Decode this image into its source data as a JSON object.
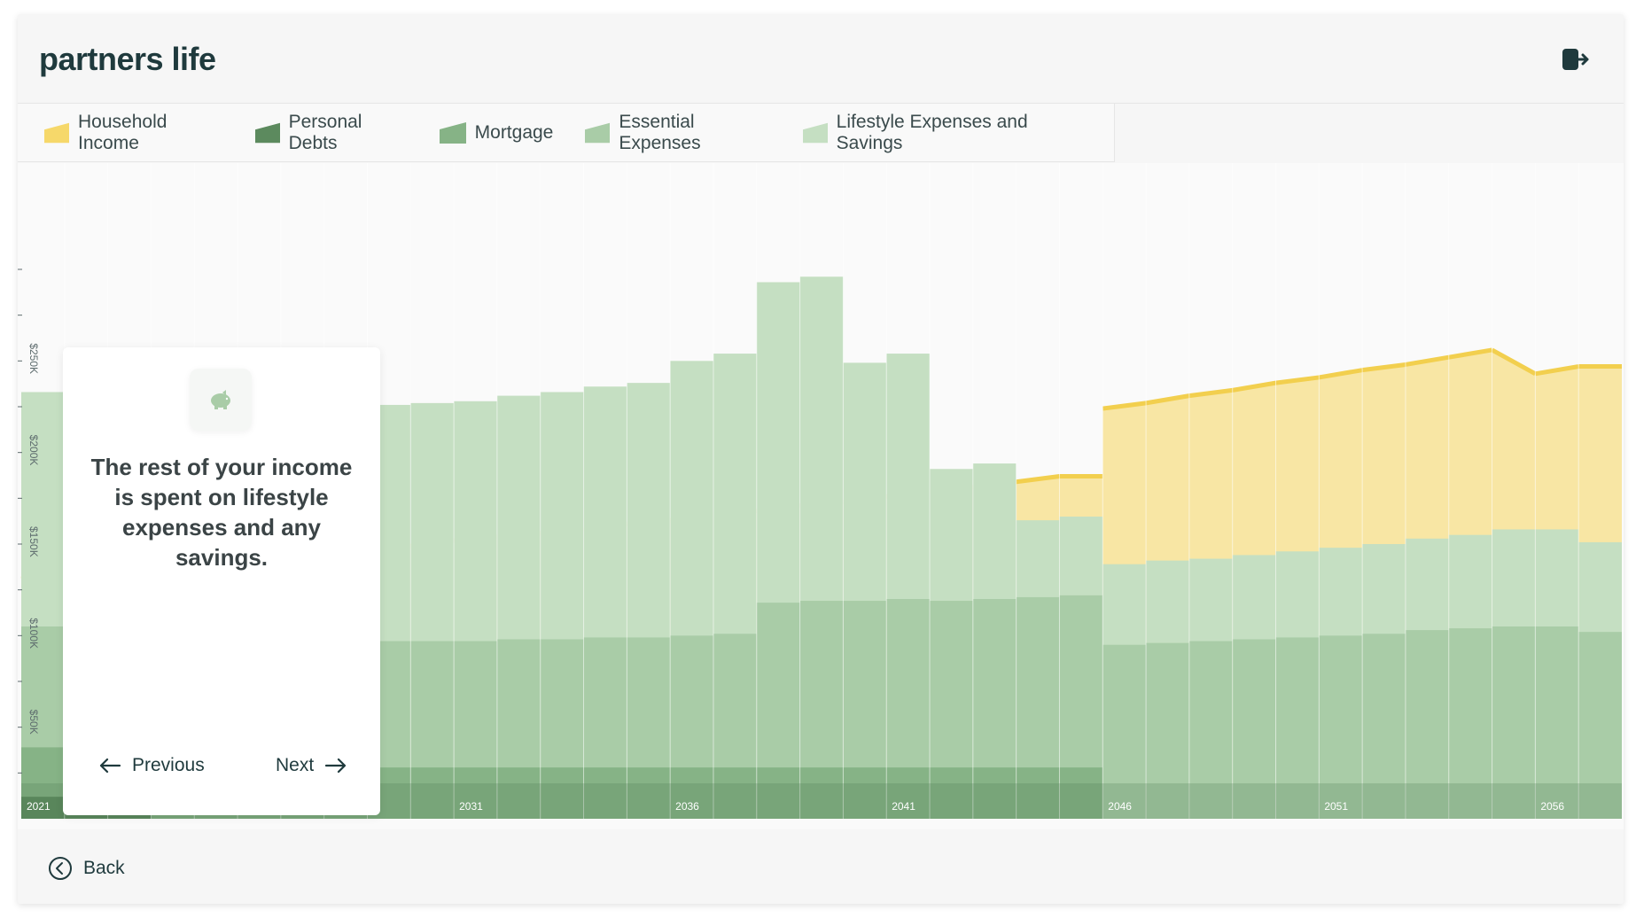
{
  "header": {
    "logo_text": "partners life",
    "logout_icon": "logout-icon"
  },
  "legend": [
    {
      "label": "Household Income",
      "color": "#f6d86a"
    },
    {
      "label": "Personal Debts",
      "color": "#5c8a5e"
    },
    {
      "label": "Mortgage",
      "color": "#86b386"
    },
    {
      "label": "Essential Expenses",
      "color": "#a9cca7"
    },
    {
      "label": "Lifestyle Expenses and Savings",
      "color": "#c5dfc2"
    }
  ],
  "card": {
    "icon": "piggy-bank-icon",
    "text": "The rest of your income is spent on lifestyle expenses and any savings.",
    "previous_label": "Previous",
    "next_label": "Next"
  },
  "footer": {
    "back_label": "Back"
  },
  "chart_data": {
    "type": "area",
    "x": [
      2021,
      2022,
      2023,
      2024,
      2025,
      2026,
      2027,
      2028,
      2029,
      2030,
      2031,
      2032,
      2033,
      2034,
      2035,
      2036,
      2037,
      2038,
      2039,
      2040,
      2041,
      2042,
      2043,
      2044,
      2045,
      2046,
      2047,
      2048,
      2049,
      2050,
      2051,
      2052,
      2053,
      2054,
      2055,
      2056,
      2057
    ],
    "x_tick_labels": [
      "2021",
      "2026",
      "2031",
      "2036",
      "2041",
      "2046",
      "2051",
      "2056"
    ],
    "y_tick_labels": [
      "$50K",
      "$100K",
      "$150K",
      "$200K",
      "$250K"
    ],
    "ylim": [
      0,
      300000
    ],
    "series": [
      {
        "name": "Household Income",
        "color": "#f6d86a",
        "values": [
          131000,
          133000,
          135000,
          137000,
          139000,
          141000,
          143000,
          145000,
          147000,
          149000,
          152000,
          154000,
          156000,
          158000,
          161000,
          163000,
          166000,
          168000,
          171000,
          173000,
          176000,
          179000,
          181000,
          184000,
          187000,
          224000,
          227000,
          231000,
          234000,
          238000,
          241000,
          245000,
          248000,
          252000,
          256000,
          243000,
          247000
        ]
      },
      {
        "name": "Lifestyle Expenses and Savings",
        "color": "#c5dfc2",
        "values": [
          128000,
          125000,
          122000,
          122000,
          124000,
          125000,
          126000,
          127000,
          129000,
          130000,
          131000,
          133000,
          135000,
          137000,
          139000,
          150000,
          153000,
          175000,
          177000,
          130000,
          134000,
          72000,
          74000,
          42000,
          43000,
          44000,
          45000,
          45000,
          46000,
          47000,
          48000,
          49000,
          50000,
          51000,
          53000,
          53000,
          49000
        ]
      },
      {
        "name": "Essential Expenses",
        "color": "#a9cca7",
        "values": [
          66000,
          66000,
          68000,
          67000,
          67000,
          67000,
          68000,
          68000,
          69000,
          69000,
          69000,
          70000,
          70000,
          71000,
          71000,
          72000,
          73000,
          90000,
          91000,
          91000,
          92000,
          91000,
          92000,
          93000,
          94000,
          95000,
          96000,
          97000,
          98000,
          99000,
          100000,
          101000,
          103000,
          104000,
          105000,
          105000,
          102000
        ]
      },
      {
        "name": "Mortgage",
        "color": "#86b386",
        "values": [
          27000,
          27000,
          28000,
          28000,
          28000,
          28000,
          28000,
          28000,
          28000,
          28000,
          28000,
          28000,
          28000,
          28000,
          28000,
          28000,
          28000,
          28000,
          28000,
          28000,
          28000,
          28000,
          28000,
          28000,
          28000,
          0,
          0,
          0,
          0,
          0,
          0,
          0,
          0,
          0,
          0,
          0,
          0
        ]
      },
      {
        "name": "Personal Debts",
        "color": "#5c8a5e",
        "values": [
          12000,
          12000,
          4000,
          0,
          0,
          0,
          0,
          0,
          0,
          0,
          0,
          0,
          0,
          0,
          0,
          0,
          0,
          0,
          0,
          0,
          0,
          0,
          0,
          0,
          0,
          0,
          0,
          0,
          0,
          0,
          0,
          0,
          0,
          0,
          0,
          0,
          0
        ]
      }
    ]
  }
}
